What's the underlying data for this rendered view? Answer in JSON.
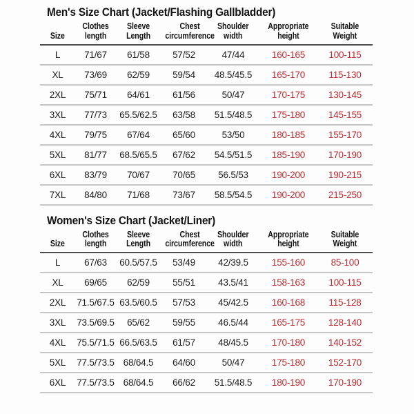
{
  "colors": {
    "text": "#1c1c1c",
    "highlight_red": "#c1272d",
    "header_rule": "#4d4d4d",
    "row_rule": "#c6c6c6",
    "background": "#fdfdfd",
    "title": "#121212"
  },
  "chart_data": [
    {
      "type": "table",
      "title": "Men's Size Chart (Jacket/Flashing Gallbladder)",
      "columns": [
        "Size",
        "Clothes\nlength",
        "Sleeve\nLength",
        "Chest\ncircumference",
        "Shoulder\nwidth",
        "Appropriate\nheight",
        "Suitable\nWeight"
      ],
      "highlight_columns": [
        5,
        6
      ],
      "rows": [
        [
          "L",
          "71/67",
          "61/58",
          "57/52",
          "47/44",
          "160-165",
          "100-115"
        ],
        [
          "XL",
          "73/69",
          "62/59",
          "59/54",
          "48.5/45.5",
          "165-170",
          "115-130"
        ],
        [
          "2XL",
          "75/71",
          "64/61",
          "61/56",
          "50/47",
          "170-175",
          "130-145"
        ],
        [
          "3XL",
          "77/73",
          "65.5/62.5",
          "63/58",
          "51.5/48.5",
          "175-180",
          "145-155"
        ],
        [
          "4XL",
          "79/75",
          "67/64",
          "65/60",
          "53/50",
          "180-185",
          "155-170"
        ],
        [
          "5XL",
          "81/77",
          "68.5/65.5",
          "67/62",
          "54.5/51.5",
          "185-190",
          "170-190"
        ],
        [
          "6XL",
          "83/79",
          "70/67",
          "70/65",
          "56.5/53",
          "190-200",
          "190-215"
        ],
        [
          "7XL",
          "84/80",
          "71/68",
          "73/67",
          "58.5/54.5",
          "190-200",
          "215-250"
        ]
      ]
    },
    {
      "type": "table",
      "title": "Women's Size Chart (Jacket/Liner)",
      "columns": [
        "Size",
        "Clothes\nlength",
        "Sleeve\nLength",
        "Chest\ncircumference",
        "Shoulder\nwidth",
        "Appropriate\nheight",
        "Suitable\nWeight"
      ],
      "highlight_columns": [
        5,
        6
      ],
      "rows": [
        [
          "L",
          "67/63",
          "60.5/57.5",
          "53/49",
          "42/39.5",
          "155-160",
          "85-100"
        ],
        [
          "XL",
          "69/65",
          "62/59",
          "55/51",
          "43.5/41",
          "158-163",
          "100-115"
        ],
        [
          "2XL",
          "71.5/67.5",
          "63.5/60.5",
          "57/53",
          "45/42.5",
          "160-168",
          "115-128"
        ],
        [
          "3XL",
          "73.5/69.5",
          "65/62",
          "59/55",
          "46.5/44",
          "165-175",
          "128-140"
        ],
        [
          "4XL",
          "75.5/71.5",
          "66.5/63.5",
          "61/57",
          "48/45.5",
          "170-180",
          "140-152"
        ],
        [
          "5XL",
          "77.5/73.5",
          "68/64.5",
          "64/60",
          "50/47",
          "175-180",
          "152-170"
        ],
        [
          "6XL",
          "77.5/73.5",
          "68/64.5",
          "66/62",
          "51.5/48.5",
          "180-190",
          "170-190"
        ]
      ]
    }
  ]
}
